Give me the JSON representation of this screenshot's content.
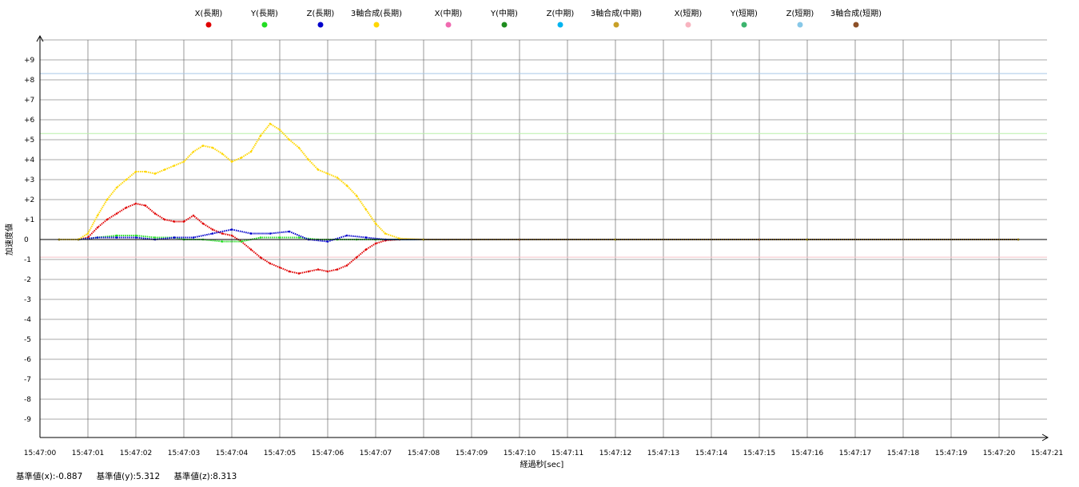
{
  "chart_data": {
    "type": "scatter",
    "ylabel": "加速度値",
    "xlabel": "経過秒[sec]",
    "ylim": [
      -10,
      10
    ],
    "x_range_sec": [
      0,
      21
    ],
    "x_ticks": [
      "15:47:00",
      "15:47:01",
      "15:47:02",
      "15:47:03",
      "15:47:04",
      "15:47:05",
      "15:47:06",
      "15:47:07",
      "15:47:08",
      "15:47:09",
      "15:47:10",
      "15:47:11",
      "15:47:12",
      "15:47:13",
      "15:47:14",
      "15:47:15",
      "15:47:16",
      "15:47:17",
      "15:47:18",
      "15:47:19",
      "15:47:20",
      "15:47:21"
    ],
    "y_ticks": [
      "+9",
      "+8",
      "+7",
      "+6",
      "+5",
      "+4",
      "+3",
      "+2",
      "+1",
      "0",
      "-1",
      "-2",
      "-3",
      "-4",
      "-5",
      "-6",
      "-7",
      "-8",
      "-9"
    ],
    "y_tick_values": [
      9,
      8,
      7,
      6,
      5,
      4,
      3,
      2,
      1,
      0,
      -1,
      -2,
      -3,
      -4,
      -5,
      -6,
      -7,
      -8,
      -9
    ],
    "reference_lines": [
      {
        "value": 8.313,
        "color": "#a8c8e8"
      },
      {
        "value": 5.312,
        "color": "#b8f0a8"
      },
      {
        "value": -0.887,
        "color": "#f4c0c8"
      }
    ],
    "legend_position": "top",
    "series": [
      {
        "name": "X(長期)",
        "color": "#e00000",
        "points": [
          [
            0.4,
            0
          ],
          [
            0.8,
            0
          ],
          [
            1.0,
            0.1
          ],
          [
            1.2,
            0.6
          ],
          [
            1.4,
            1.0
          ],
          [
            1.6,
            1.3
          ],
          [
            1.8,
            1.6
          ],
          [
            2.0,
            1.8
          ],
          [
            2.2,
            1.7
          ],
          [
            2.4,
            1.3
          ],
          [
            2.6,
            1.0
          ],
          [
            2.8,
            0.9
          ],
          [
            3.0,
            0.9
          ],
          [
            3.2,
            1.2
          ],
          [
            3.4,
            0.8
          ],
          [
            3.6,
            0.5
          ],
          [
            3.8,
            0.3
          ],
          [
            4.0,
            0.2
          ],
          [
            4.2,
            -0.1
          ],
          [
            4.4,
            -0.5
          ],
          [
            4.6,
            -0.9
          ],
          [
            4.8,
            -1.2
          ],
          [
            5.0,
            -1.4
          ],
          [
            5.2,
            -1.6
          ],
          [
            5.4,
            -1.7
          ],
          [
            5.6,
            -1.6
          ],
          [
            5.8,
            -1.5
          ],
          [
            6.0,
            -1.6
          ],
          [
            6.2,
            -1.5
          ],
          [
            6.4,
            -1.3
          ],
          [
            6.6,
            -0.9
          ],
          [
            6.8,
            -0.5
          ],
          [
            7.0,
            -0.2
          ],
          [
            7.2,
            -0.05
          ],
          [
            7.5,
            0
          ],
          [
            10,
            0
          ],
          [
            15,
            0
          ],
          [
            20.4,
            0
          ]
        ]
      },
      {
        "name": "Y(長期)",
        "color": "#22dd22",
        "points": [
          [
            0.4,
            0
          ],
          [
            0.8,
            0
          ],
          [
            1.2,
            0.1
          ],
          [
            1.6,
            0.2
          ],
          [
            2.0,
            0.2
          ],
          [
            2.4,
            0.1
          ],
          [
            2.8,
            0.1
          ],
          [
            3.0,
            0.0
          ],
          [
            3.4,
            0.0
          ],
          [
            3.8,
            -0.1
          ],
          [
            4.2,
            -0.1
          ],
          [
            4.6,
            0.1
          ],
          [
            5.0,
            0.1
          ],
          [
            5.4,
            0.1
          ],
          [
            5.8,
            0.0
          ],
          [
            6.2,
            0.0
          ],
          [
            6.6,
            0.0
          ],
          [
            7.0,
            0
          ],
          [
            8,
            0
          ],
          [
            12,
            0
          ],
          [
            16,
            0
          ],
          [
            20.4,
            0
          ]
        ]
      },
      {
        "name": "Z(長期)",
        "color": "#0000cc",
        "points": [
          [
            0.4,
            0
          ],
          [
            0.8,
            0
          ],
          [
            1.2,
            0.1
          ],
          [
            1.6,
            0.1
          ],
          [
            2.0,
            0.1
          ],
          [
            2.4,
            0.0
          ],
          [
            2.8,
            0.1
          ],
          [
            3.2,
            0.1
          ],
          [
            3.6,
            0.3
          ],
          [
            4.0,
            0.5
          ],
          [
            4.4,
            0.3
          ],
          [
            4.8,
            0.3
          ],
          [
            5.2,
            0.4
          ],
          [
            5.6,
            0.0
          ],
          [
            6.0,
            -0.1
          ],
          [
            6.4,
            0.2
          ],
          [
            6.8,
            0.1
          ],
          [
            7.2,
            0.0
          ],
          [
            8,
            0
          ],
          [
            12,
            0
          ],
          [
            16,
            0
          ],
          [
            20.4,
            0
          ]
        ]
      },
      {
        "name": "3軸合成(長期)",
        "color": "#ffd700",
        "points": [
          [
            0.4,
            0
          ],
          [
            0.8,
            0
          ],
          [
            1.0,
            0.3
          ],
          [
            1.2,
            1.2
          ],
          [
            1.4,
            2.0
          ],
          [
            1.6,
            2.6
          ],
          [
            1.8,
            3.0
          ],
          [
            2.0,
            3.4
          ],
          [
            2.2,
            3.4
          ],
          [
            2.4,
            3.3
          ],
          [
            2.6,
            3.5
          ],
          [
            2.8,
            3.7
          ],
          [
            3.0,
            3.9
          ],
          [
            3.2,
            4.4
          ],
          [
            3.4,
            4.7
          ],
          [
            3.6,
            4.6
          ],
          [
            3.8,
            4.3
          ],
          [
            4.0,
            3.9
          ],
          [
            4.2,
            4.1
          ],
          [
            4.4,
            4.4
          ],
          [
            4.6,
            5.2
          ],
          [
            4.8,
            5.8
          ],
          [
            5.0,
            5.5
          ],
          [
            5.2,
            5.0
          ],
          [
            5.4,
            4.6
          ],
          [
            5.6,
            4.0
          ],
          [
            5.8,
            3.5
          ],
          [
            6.0,
            3.3
          ],
          [
            6.2,
            3.1
          ],
          [
            6.4,
            2.7
          ],
          [
            6.6,
            2.2
          ],
          [
            6.8,
            1.5
          ],
          [
            7.0,
            0.8
          ],
          [
            7.2,
            0.3
          ],
          [
            7.5,
            0.05
          ],
          [
            8,
            0
          ],
          [
            12,
            0
          ],
          [
            16,
            0
          ],
          [
            20.4,
            0
          ]
        ]
      },
      {
        "name": "X(中期)",
        "color": "#f06ab0",
        "points": []
      },
      {
        "name": "Y(中期)",
        "color": "#1e8c1e",
        "points": []
      },
      {
        "name": "Z(中期)",
        "color": "#00b4f0",
        "points": []
      },
      {
        "name": "3軸合成(中期)",
        "color": "#c8a028",
        "points": []
      },
      {
        "name": "X(短期)",
        "color": "#f8b4c0",
        "points": []
      },
      {
        "name": "Y(短期)",
        "color": "#3cb46e",
        "points": []
      },
      {
        "name": "Z(短期)",
        "color": "#87c8e8",
        "points": []
      },
      {
        "name": "3軸合成(短期)",
        "color": "#8c5028",
        "points": []
      }
    ]
  },
  "footer": {
    "base_x": "基準値(x):-0.887",
    "base_y": "基準値(y):5.312",
    "base_z": "基準値(z):8.313"
  }
}
